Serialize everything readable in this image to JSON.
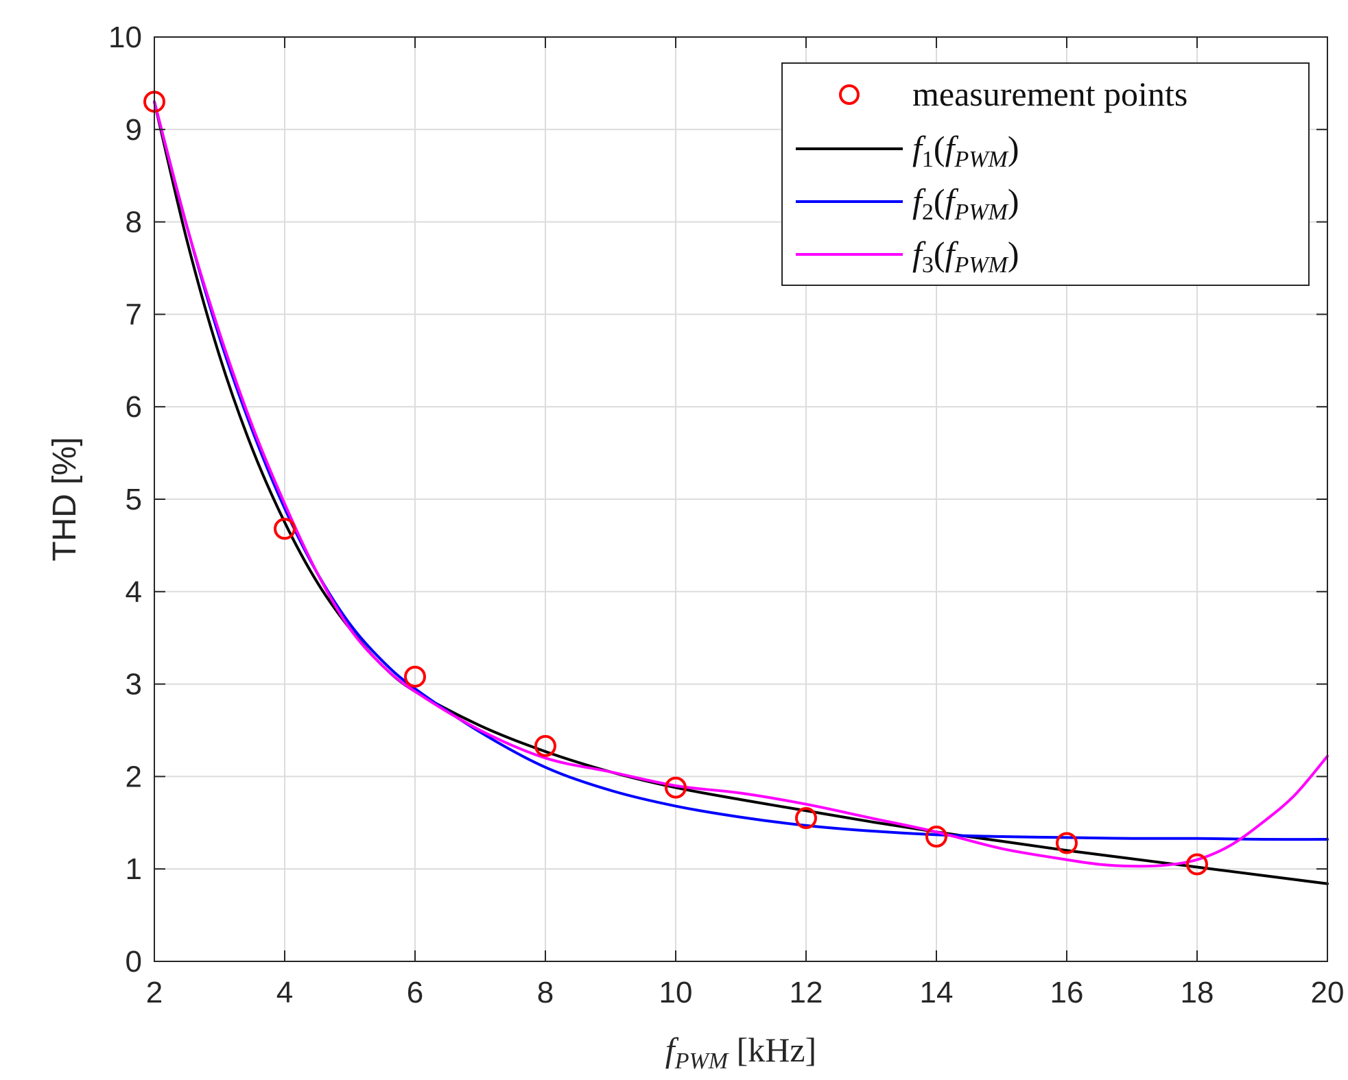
{
  "chart_data": {
    "type": "line",
    "xlabel": {
      "main": "f",
      "sub": "PWM",
      "unit": " [kHz]"
    },
    "ylabel": "THD [%]",
    "xlim": [
      2,
      20
    ],
    "ylim": [
      0,
      10
    ],
    "xticks": [
      2,
      4,
      6,
      8,
      10,
      12,
      14,
      16,
      18,
      20
    ],
    "yticks": [
      0,
      1,
      2,
      3,
      4,
      5,
      6,
      7,
      8,
      9,
      10
    ],
    "grid": true,
    "legend_position": "top-right",
    "series": [
      {
        "name": "measurement points",
        "style": "markers",
        "color": "#ff0000",
        "x": [
          2,
          4,
          6,
          8,
          10,
          12,
          14,
          16,
          18
        ],
        "y": [
          9.3,
          4.68,
          3.08,
          2.33,
          1.88,
          1.55,
          1.35,
          1.28,
          1.05
        ]
      },
      {
        "name": "f1(fPWM)",
        "legend": {
          "main": "f",
          "sub": "1",
          "arg": "PWM"
        },
        "style": "line",
        "color": "#000000",
        "x": [
          2,
          2.5,
          3,
          3.5,
          4,
          4.5,
          5,
          5.5,
          6,
          7,
          8,
          9,
          10,
          11,
          12,
          13,
          14,
          15,
          16,
          17,
          18,
          19,
          20
        ],
        "y": [
          9.3,
          7.8,
          6.55,
          5.55,
          4.75,
          4.1,
          3.6,
          3.2,
          2.92,
          2.55,
          2.27,
          2.05,
          1.88,
          1.75,
          1.63,
          1.51,
          1.4,
          1.3,
          1.2,
          1.11,
          1.02,
          0.93,
          0.84
        ]
      },
      {
        "name": "f2(fPWM)",
        "legend": {
          "main": "f",
          "sub": "2",
          "arg": "PWM"
        },
        "style": "line",
        "color": "#0000ff",
        "x": [
          2,
          2.5,
          3,
          3.5,
          4,
          4.5,
          5,
          5.5,
          6,
          7,
          8,
          9,
          10,
          11,
          12,
          13,
          14,
          15,
          16,
          17,
          18,
          19,
          20
        ],
        "y": [
          9.3,
          7.95,
          6.75,
          5.75,
          4.9,
          4.2,
          3.65,
          3.25,
          2.95,
          2.48,
          2.1,
          1.85,
          1.68,
          1.56,
          1.47,
          1.41,
          1.37,
          1.35,
          1.34,
          1.33,
          1.33,
          1.32,
          1.32
        ]
      },
      {
        "name": "f3(fPWM)",
        "legend": {
          "main": "f",
          "sub": "3",
          "arg": "PWM"
        },
        "style": "line",
        "color": "#ff00ff",
        "x": [
          2,
          2.5,
          3,
          3.5,
          4,
          4.5,
          5,
          5.5,
          6,
          7,
          8,
          9,
          10,
          11,
          12,
          13,
          14,
          15,
          16,
          16.5,
          17,
          17.5,
          18,
          18.5,
          19,
          19.5,
          20
        ],
        "y": [
          9.3,
          7.95,
          6.8,
          5.8,
          4.95,
          4.2,
          3.6,
          3.2,
          2.92,
          2.5,
          2.2,
          2.05,
          1.9,
          1.82,
          1.7,
          1.55,
          1.4,
          1.22,
          1.1,
          1.05,
          1.03,
          1.04,
          1.1,
          1.25,
          1.5,
          1.8,
          2.22
        ]
      }
    ]
  }
}
